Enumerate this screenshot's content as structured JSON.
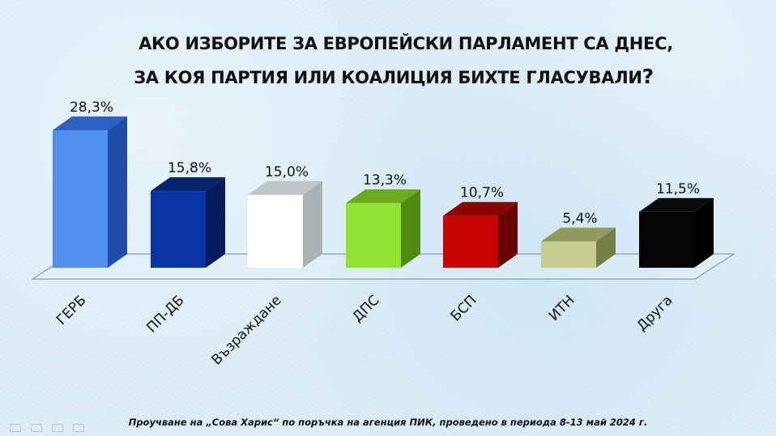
{
  "title": {
    "line1": "АКО ИЗБОРИТЕ ЗА ЕВРОПЕЙСКИ ПАРЛАМЕНТ СА ДНЕС,",
    "line2": "ЗА КОЯ ПАРТИЯ ИЛИ КОАЛИЦИЯ БИХТЕ ГЛАСУВАЛИ",
    "line2_mark": "?"
  },
  "footer": "Проучване на „Сова Харис“ по поръчка на агенция ПИК, проведено в периода 8-13 май 2024 г.",
  "bars": [
    {
      "label": "ГЕРБ",
      "value_label": "28,3%",
      "front": "#4f90f0",
      "top": "#2c61c4",
      "side": "#1e4ea8"
    },
    {
      "label": "ПП-ДБ",
      "value_label": "15,8%",
      "front": "#0a33a3",
      "top": "#06236f",
      "side": "#041b5c"
    },
    {
      "label": "Възраждане",
      "value_label": "15,0%",
      "front": "#ffffff",
      "top": "#bfc5c6",
      "side": "#a9b2b3"
    },
    {
      "label": "ДПС",
      "value_label": "13,3%",
      "front": "#90e333",
      "top": "#69aa1e",
      "side": "#4f8a13"
    },
    {
      "label": "БСП",
      "value_label": "10,7%",
      "front": "#c70505",
      "top": "#8c0303",
      "side": "#6b0202"
    },
    {
      "label": "ИТН",
      "value_label": "5,4%",
      "front": "#c7cc90",
      "top": "#8f9a5e",
      "side": "#747f48"
    },
    {
      "label": "Друга",
      "value_label": "11,5%",
      "front": "#050505",
      "top": "#0a0a0a",
      "side": "#000000"
    }
  ],
  "chart_data": {
    "type": "bar",
    "title": "АКО ИЗБОРИТЕ ЗА ЕВРОПЕЙСКИ ПАРЛАМЕНТ СА ДНЕС, ЗА КОЯ ПАРТИЯ ИЛИ КОАЛИЦИЯ БИХТЕ ГЛАСУВАЛИ?",
    "categories": [
      "ГЕРБ",
      "ПП-ДБ",
      "Възраждане",
      "ДПС",
      "БСП",
      "ИТН",
      "Друга"
    ],
    "values": [
      28.3,
      15.8,
      15.0,
      13.3,
      10.7,
      5.4,
      11.5
    ],
    "value_labels": [
      "28,3%",
      "15,8%",
      "15,0%",
      "13,3%",
      "10,7%",
      "5,4%",
      "11,5%"
    ],
    "colors": [
      "#4f90f0",
      "#0a33a3",
      "#ffffff",
      "#90e333",
      "#c70505",
      "#c7cc90",
      "#050505"
    ],
    "xlabel": "",
    "ylabel": "",
    "unit": "%",
    "grid": false,
    "legend": null,
    "style": "3d-column",
    "note": "Проучване на „Сова Харис“ по поръчка на агенция ПИК, проведено в периода 8-13 май 2024 г."
  }
}
